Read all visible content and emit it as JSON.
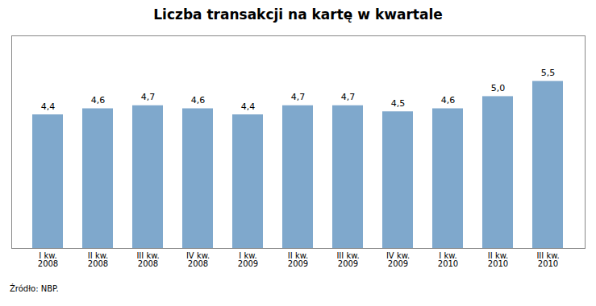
{
  "chart_data": {
    "type": "bar",
    "title": "Liczba transakcji na kartę w kwartale",
    "categories": [
      "I kw.\n2008",
      "II kw.\n2008",
      "III kw.\n2008",
      "IV kw.\n2008",
      "I kw.\n2009",
      "II kw.\n2009",
      "III kw.\n2009",
      "IV kw.\n2009",
      "I kw.\n2010",
      "II kw.\n2010",
      "III kw.\n2010"
    ],
    "values": [
      4.4,
      4.6,
      4.7,
      4.6,
      4.4,
      4.7,
      4.7,
      4.5,
      4.6,
      5.0,
      5.5
    ],
    "value_labels": [
      "4,4",
      "4,6",
      "4,7",
      "4,6",
      "4,4",
      "4,7",
      "4,7",
      "4,5",
      "4,6",
      "5,0",
      "5,5"
    ],
    "data_labels": true,
    "color": "#7fa8cc",
    "ylim": [
      0,
      7.0
    ],
    "tick_labels": "x",
    "grid": false,
    "annotations": [
      "Źródło: NBP."
    ]
  }
}
